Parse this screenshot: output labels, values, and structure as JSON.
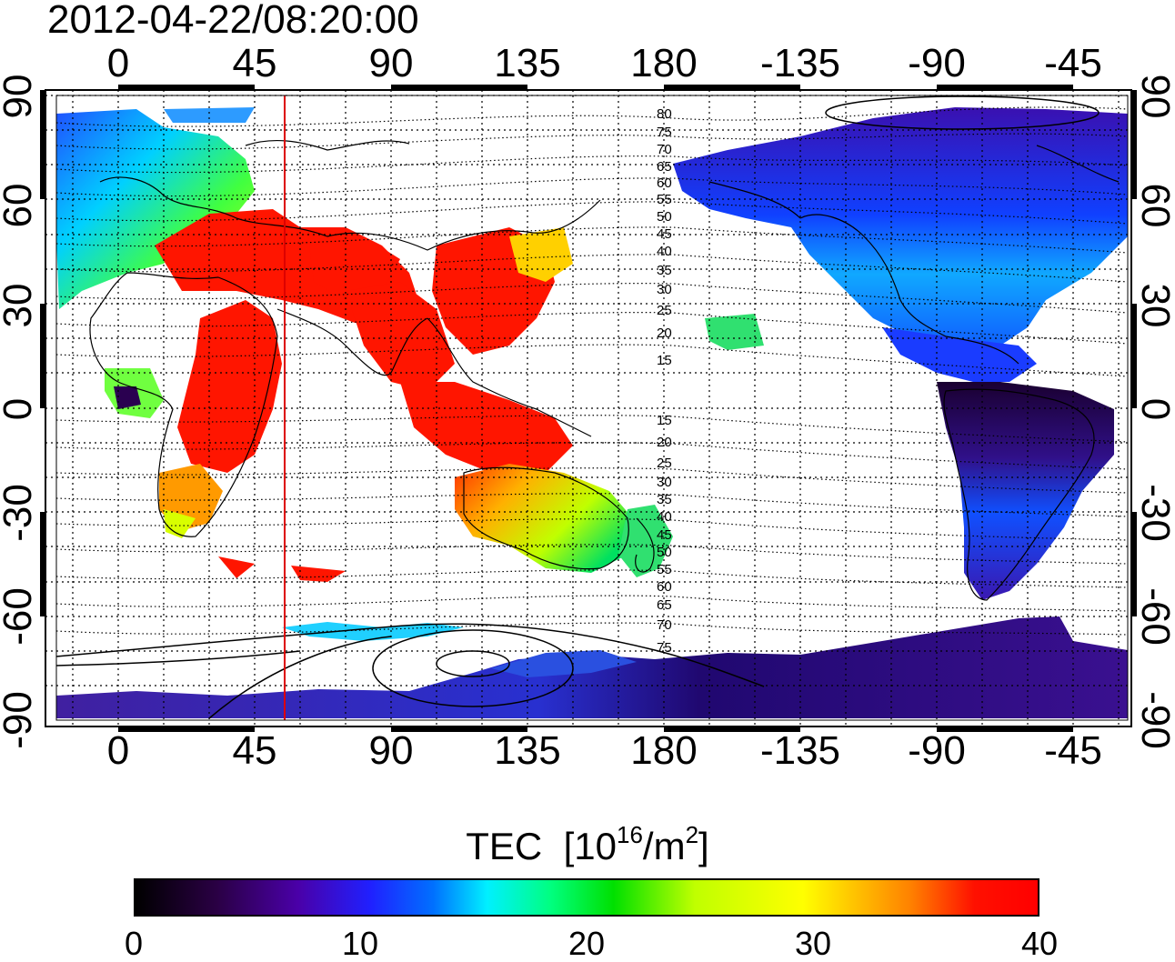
{
  "timestamp": "2012-04-22/08:20:00",
  "lon_ticks": [
    "0",
    "45",
    "90",
    "135",
    "180",
    "-135",
    "-90",
    "-45"
  ],
  "lat_ticks": [
    "90",
    "60",
    "30",
    "0",
    "-30",
    "-60",
    "-90"
  ],
  "contour_labels": [
    "80",
    "75",
    "70",
    "65",
    "60",
    "55",
    "50",
    "45",
    "40",
    "35",
    "30",
    "25",
    "20",
    "15",
    "15",
    "20",
    "25",
    "30",
    "35",
    "40",
    "45",
    "50",
    "55",
    "60",
    "65",
    "70",
    "75"
  ],
  "colorbar": {
    "title": "TEC",
    "unit_base": "10",
    "unit_exp": "16",
    "unit_per": "/m",
    "unit_per_exp": "2",
    "ticks": [
      "0",
      "10",
      "20",
      "30",
      "40"
    ],
    "min": 0,
    "max": 40
  },
  "map": {
    "lon_range": [
      -30,
      330
    ],
    "lat_range": [
      -90,
      90
    ],
    "marker_longitude": 55
  }
}
